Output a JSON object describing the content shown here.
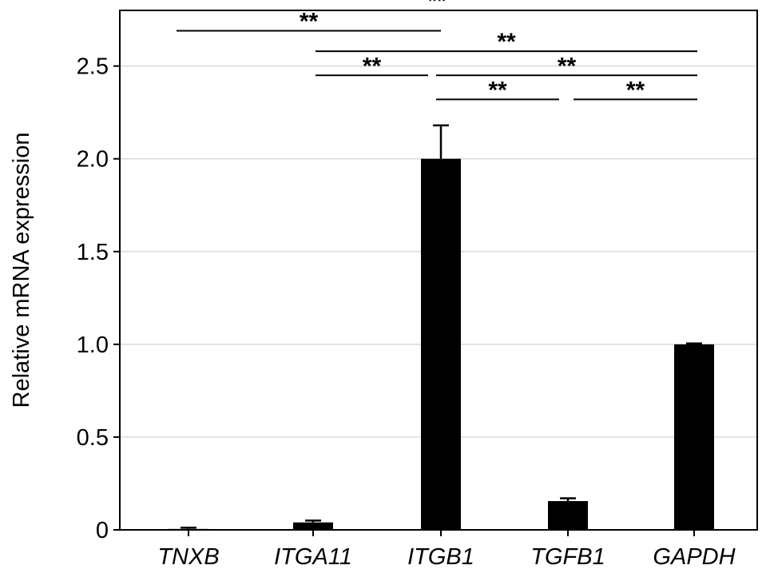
{
  "chart_data": {
    "type": "bar",
    "categories": [
      "TNXB",
      "ITGA11",
      "ITGB1",
      "TGFB1",
      "GAPDH"
    ],
    "values": [
      0.005,
      0.04,
      2.0,
      0.155,
      1.0
    ],
    "errors": [
      0.007,
      0.01,
      0.18,
      0.015,
      0.005
    ],
    "ylabel": "Relative mRNA expression",
    "ylim": [
      0,
      2.8
    ],
    "yticks": [
      0,
      0.5,
      1.0,
      1.5,
      2.0,
      2.5
    ],
    "ytick_labels": [
      "0",
      "0.5",
      "1.0",
      "1.5",
      "2.0",
      "2.5"
    ],
    "grid": true,
    "bar_color": "#000000",
    "significance": [
      {
        "from": "TNXB",
        "to": "GAPDH",
        "label": "**",
        "y": 2.8
      },
      {
        "from": "TNXB",
        "to": "ITGB1",
        "label": "**",
        "y": 2.69
      },
      {
        "from": "ITGA11",
        "to": "GAPDH",
        "label": "**",
        "y": 2.58
      },
      {
        "from": "ITGA11",
        "to": "ITGB1",
        "label": "**",
        "y": 2.45
      },
      {
        "from": "ITGB1",
        "to": "GAPDH",
        "label": "**",
        "y": 2.45
      },
      {
        "from": "ITGB1",
        "to": "TGFB1",
        "label": "**",
        "y": 2.32
      },
      {
        "from": "TGFB1",
        "to": "GAPDH",
        "label": "**",
        "y": 2.32
      }
    ]
  }
}
